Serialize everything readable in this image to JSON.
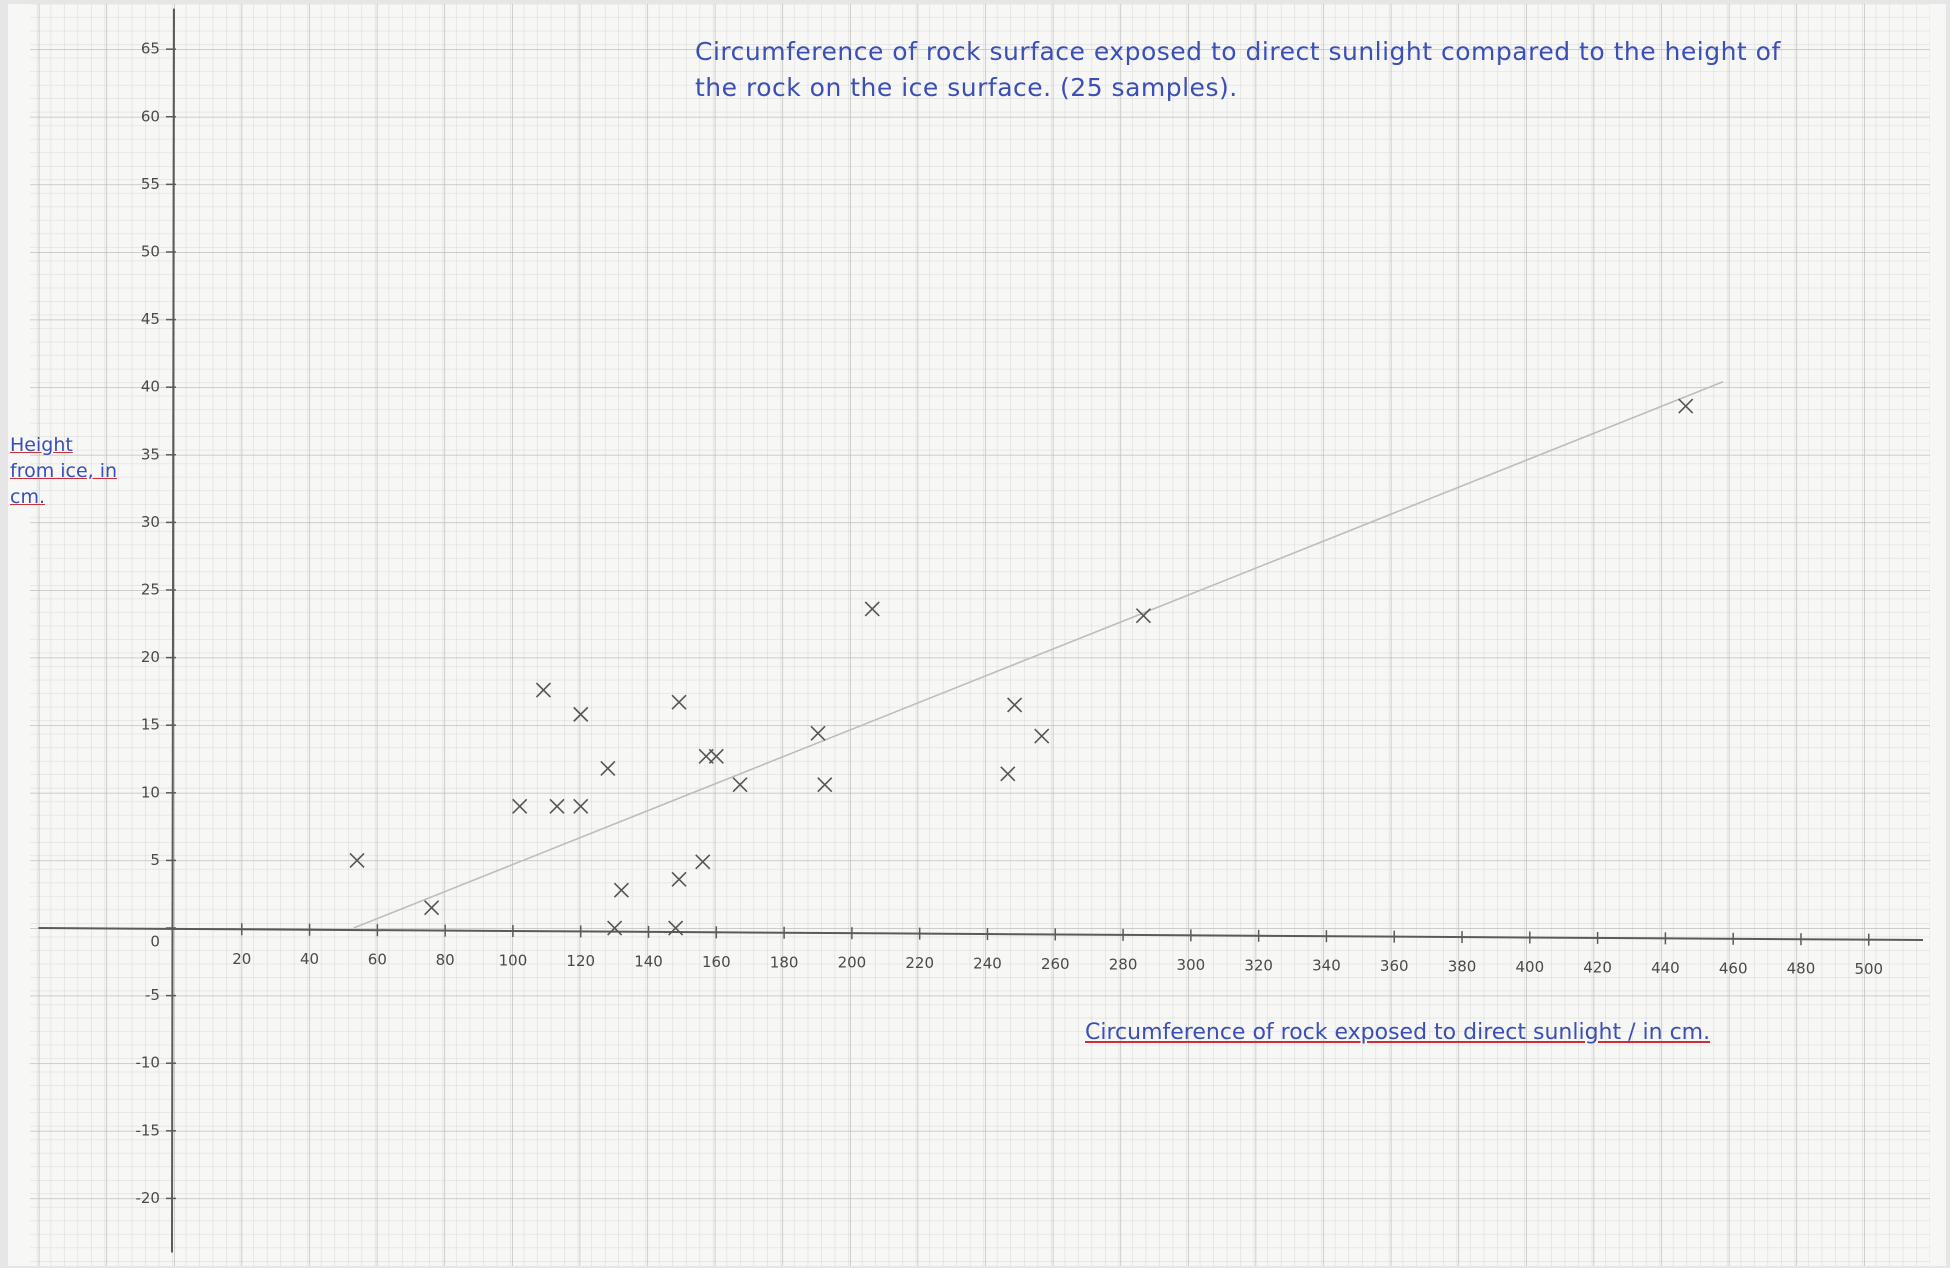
{
  "chart_data": {
    "type": "scatter",
    "title": "Circumference of rock surface exposed to direct sunlight compared to the height of the rock on the ice surface. (25 samples).",
    "x_label": "Circumference of rock exposed to direct sunlight / in cm.",
    "y_label": "Height from ice, in cm.",
    "x": [
      54,
      76,
      102,
      113,
      120,
      109,
      120,
      128,
      132,
      130,
      149,
      149,
      148,
      156,
      157,
      160,
      167,
      190,
      192,
      206,
      246,
      248,
      256,
      286,
      446
    ],
    "values": [
      5,
      1.5,
      9,
      9,
      9,
      17.6,
      15.8,
      11.8,
      2.8,
      0,
      16.7,
      3.6,
      0,
      4.9,
      12.7,
      12.7,
      10.6,
      14.4,
      10.6,
      23.6,
      11.4,
      16.5,
      14.2,
      23.1,
      38.6
    ],
    "color": "#555555",
    "trendline": {
      "x": [
        53,
        457
      ],
      "values": [
        0,
        40.4
      ],
      "color": "#bdbdbd"
    },
    "xlim": [
      -40,
      516
    ],
    "ylim": [
      -24,
      68
    ],
    "xticks": [
      20,
      40,
      60,
      80,
      100,
      120,
      140,
      160,
      180,
      200,
      220,
      240,
      260,
      280,
      300,
      320,
      340,
      360,
      380,
      400,
      420,
      440,
      460,
      480,
      500
    ],
    "yticks": [
      -20,
      -15,
      -10,
      -5,
      0,
      5,
      10,
      15,
      20,
      25,
      30,
      35,
      40,
      45,
      50,
      55,
      60,
      65
    ],
    "grid": true
  }
}
